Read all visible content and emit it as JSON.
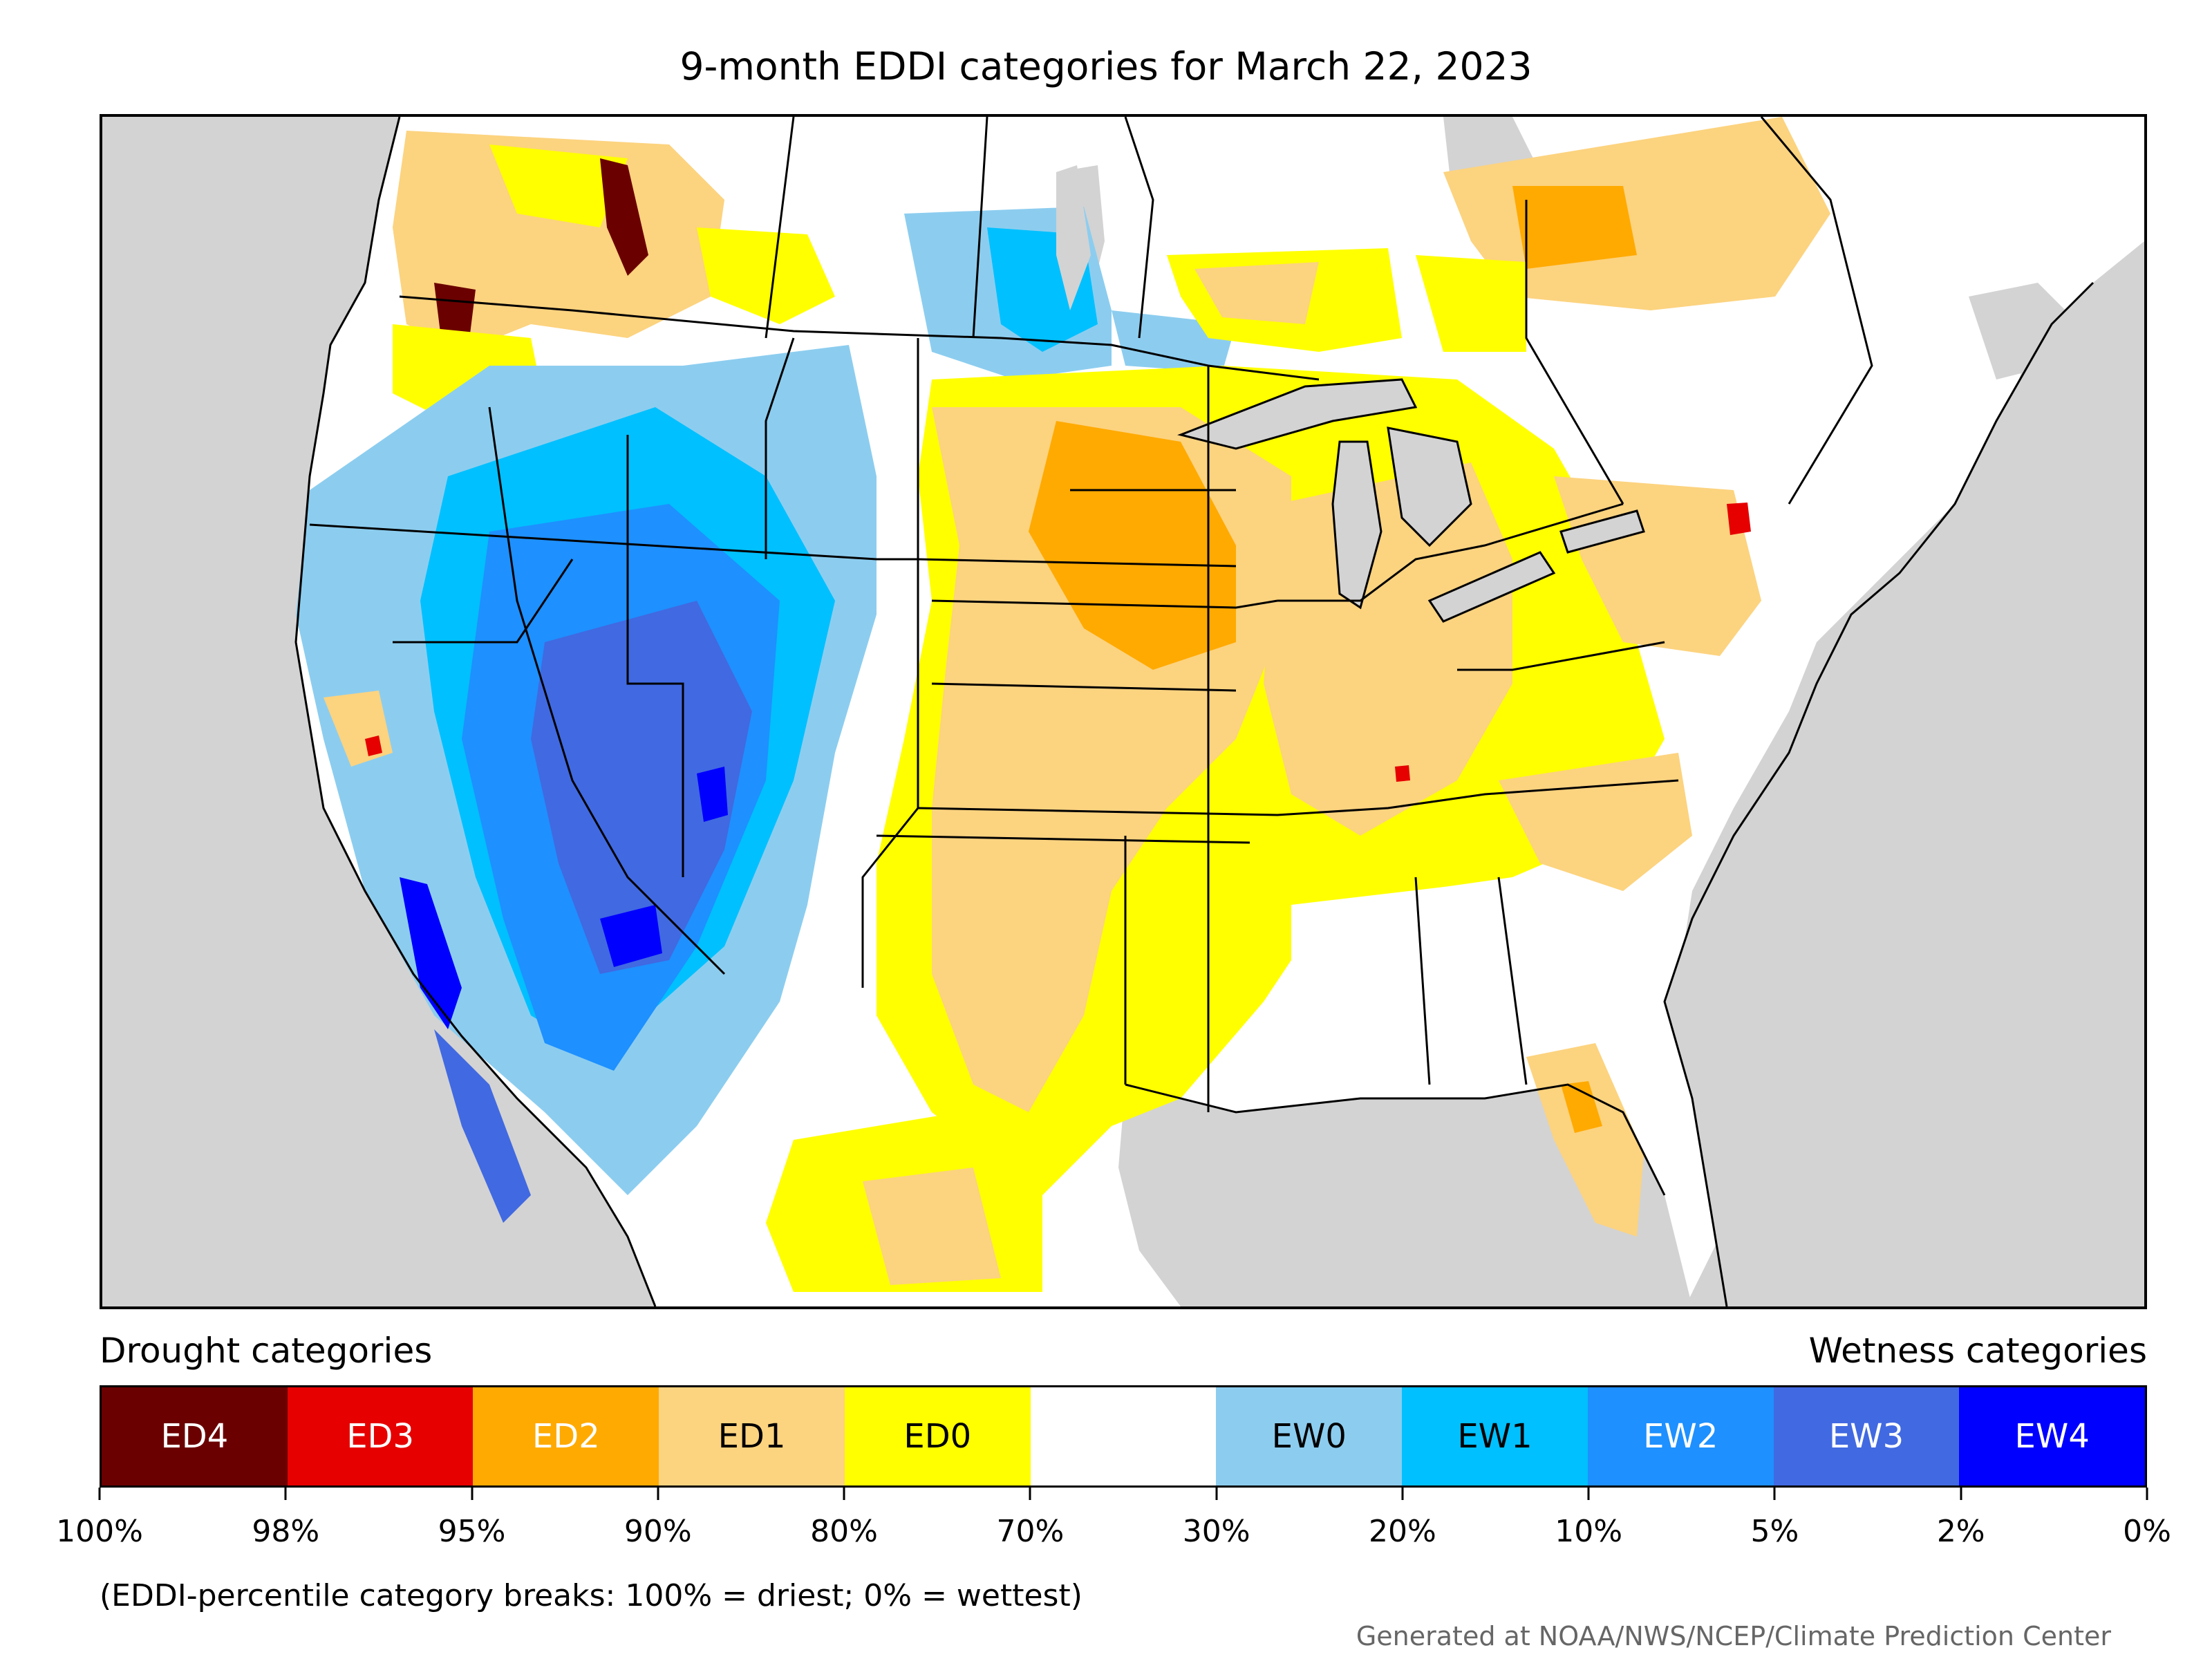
{
  "title": "9-month EDDI categories for March 22, 2023",
  "legend": {
    "drought_label": "Drought categories",
    "wetness_label": "Wetness categories",
    "categories": [
      {
        "label": "ED4",
        "color": "#6b0000",
        "text_color": "#ffffff"
      },
      {
        "label": "ED3",
        "color": "#e60000",
        "text_color": "#ffffff"
      },
      {
        "label": "ED2",
        "color": "#ffaa00",
        "text_color": "#ffffff"
      },
      {
        "label": "ED1",
        "color": "#fcd37f",
        "text_color": "#000000"
      },
      {
        "label": "ED0",
        "color": "#ffff00",
        "text_color": "#000000"
      },
      {
        "label": "",
        "color": "#ffffff",
        "text_color": "#000000"
      },
      {
        "label": "EW0",
        "color": "#8ccdef",
        "text_color": "#000000"
      },
      {
        "label": "EW1",
        "color": "#00c0ff",
        "text_color": "#000000"
      },
      {
        "label": "EW2",
        "color": "#1e90ff",
        "text_color": "#ffffff"
      },
      {
        "label": "EW3",
        "color": "#4169e1",
        "text_color": "#ffffff"
      },
      {
        "label": "EW4",
        "color": "#0000ff",
        "text_color": "#ffffff"
      }
    ],
    "breaks": [
      "100%",
      "98%",
      "95%",
      "90%",
      "80%",
      "70%",
      "30%",
      "20%",
      "10%",
      "5%",
      "2%",
      "0%"
    ]
  },
  "footnote": "(EDDI-percentile category breaks: 100% = driest; 0% = wettest)",
  "credit": "Generated at NOAA/NWS/NCEP/Climate Prediction Center",
  "map": {
    "ocean_color": "#d3d3d3",
    "land_color": "#ffffff",
    "boundary_color": "#000000"
  }
}
